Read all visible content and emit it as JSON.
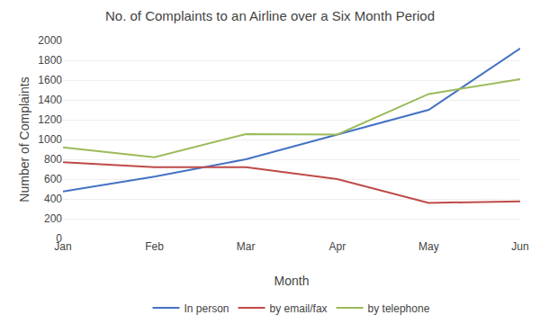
{
  "chart_data": {
    "type": "line",
    "title": "No. of Complaints to an Airline over a Six Month Period",
    "x_label": "Month",
    "y_label": "Number of Complaints",
    "categories": [
      "Jan",
      "Feb",
      "Mar",
      "Apr",
      "May",
      "Jun"
    ],
    "series": [
      {
        "name": "In person",
        "color": "#4472C4",
        "values": [
          475,
          625,
          800,
          1050,
          1300,
          1920
        ]
      },
      {
        "name": "by email/fax",
        "color": "#BE4B48",
        "values": [
          770,
          720,
          720,
          600,
          360,
          375
        ]
      },
      {
        "name": "by telephone",
        "color": "#9BBB59",
        "values": [
          920,
          820,
          1055,
          1050,
          1460,
          1610
        ]
      }
    ],
    "ylim": [
      0,
      2000
    ],
    "yticks": [
      0,
      200,
      400,
      600,
      800,
      1000,
      1200,
      1400,
      1600,
      1800,
      2000
    ],
    "grid": true,
    "legend": "bottom"
  }
}
